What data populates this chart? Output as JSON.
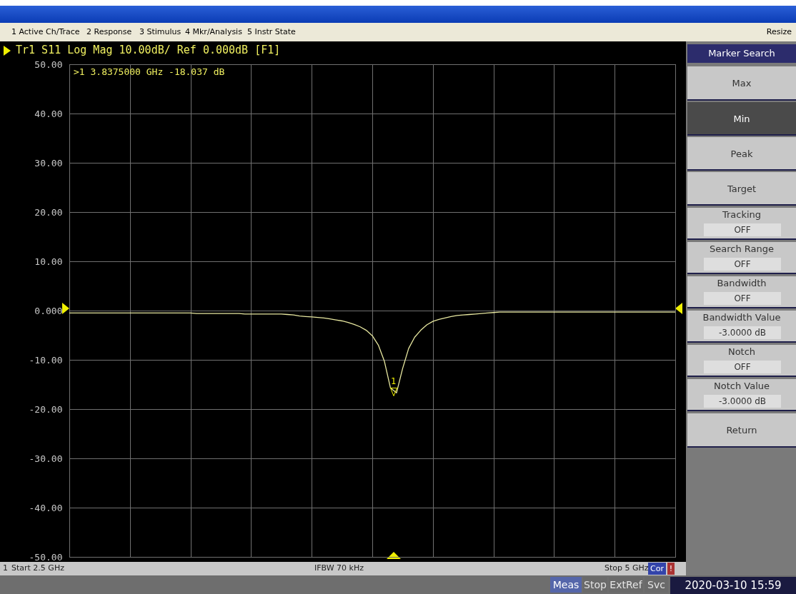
{
  "chart_data": {
    "type": "line",
    "title": "Tr1 S11 Log Mag 10.00dB/ Ref 0.000dB [F1]",
    "categories": [
      null,
      null,
      null,
      null,
      null,
      null,
      null,
      null,
      null,
      null,
      null,
      null,
      null,
      null,
      null,
      null,
      null,
      null,
      null,
      null,
      null,
      null,
      null,
      null,
      null,
      null,
      null,
      null,
      null,
      null,
      null,
      null,
      null,
      null,
      null,
      null,
      null,
      null,
      null,
      null,
      null,
      null,
      null,
      null,
      null,
      null,
      null,
      null,
      null,
      null,
      null,
      null,
      null,
      null,
      null,
      null,
      null,
      null,
      null,
      null,
      null,
      null,
      null,
      null,
      null,
      null,
      null,
      null,
      null,
      null,
      null,
      null,
      null,
      null,
      null,
      null,
      null,
      null,
      null,
      null,
      null,
      null,
      null,
      null,
      null,
      null,
      null,
      null,
      null,
      null,
      null,
      null,
      null,
      null,
      null,
      null,
      null,
      null,
      null,
      null,
      null
    ],
    "values": [
      -0.5,
      -0.5,
      -0.5,
      -0.5,
      -0.5,
      -0.5,
      -0.5,
      -0.5,
      -0.5,
      -0.5,
      -0.5,
      -0.5,
      -0.5,
      -0.5,
      -0.5,
      -0.5,
      -0.5,
      -0.5,
      -0.5,
      -0.5,
      -0.5,
      -0.6,
      -0.6,
      -0.6,
      -0.6,
      -0.6,
      -0.6,
      -0.6,
      -0.6,
      -0.7,
      -0.7,
      -0.7,
      -0.7,
      -0.7,
      -0.7,
      -0.7,
      -0.8,
      -0.9,
      -1.1,
      -1.2,
      -1.3,
      -1.4,
      -1.5,
      -1.7,
      -1.9,
      -2.1,
      -2.4,
      -2.8,
      -3.3,
      -4.0,
      -5.1,
      -7.0,
      -10.3,
      -15.7,
      -16.7,
      -11.8,
      -7.7,
      -5.4,
      -4.0,
      -2.9,
      -2.2,
      -1.8,
      -1.5,
      -1.2,
      -1.0,
      -0.9,
      -0.8,
      -0.7,
      -0.6,
      -0.5,
      -0.4,
      -0.3,
      -0.3,
      -0.3,
      -0.3,
      -0.3,
      -0.3,
      -0.3,
      -0.3,
      -0.3,
      -0.3,
      -0.3,
      -0.3,
      -0.3,
      -0.3,
      -0.3,
      -0.3,
      -0.3,
      -0.3,
      -0.3,
      -0.3,
      -0.3,
      -0.3,
      -0.3,
      -0.3,
      -0.3,
      -0.3,
      -0.3,
      -0.3,
      -0.3,
      -0.3
    ],
    "color": "#e8e8a0",
    "ylim": [
      -50,
      50
    ],
    "yticks": [
      {
        "value": 50,
        "label": "50.00"
      },
      {
        "value": 40,
        "label": "40.00"
      },
      {
        "value": 30,
        "label": "30.00"
      },
      {
        "value": 20,
        "label": "20.00"
      },
      {
        "value": 10,
        "label": "10.00"
      },
      {
        "value": 0,
        "label": "0.000"
      },
      {
        "value": -10,
        "label": "-10.00"
      },
      {
        "value": -20,
        "label": "-20.00"
      },
      {
        "value": -30,
        "label": "-30.00"
      },
      {
        "value": -40,
        "label": "-40.00"
      },
      {
        "value": -50,
        "label": "-50.00"
      }
    ],
    "grid": true,
    "tick_labels": "y",
    "annotations": [
      ">1  3.8375000 GHz -18.037 dB",
      "1",
      "1 Active Ch/Trace",
      "2 Response",
      "3 Stimulus",
      "4 Mkr/Analysis",
      "5 Instr State",
      "Resize",
      "Marker Search",
      "Max",
      "Min",
      "Peak",
      "Target",
      "Tracking",
      "OFF",
      "Search Range",
      "OFF",
      "Bandwidth",
      "OFF",
      "Bandwidth Value",
      "-3.0000 dB",
      "Notch",
      "OFF",
      "Notch Value",
      "-3.0000 dB",
      "Return",
      "1",
      "Start 2.5 GHz",
      "IFBW 70 kHz",
      "Stop 5 GHz",
      "Cor",
      "!",
      "Meas",
      "Stop",
      "ExtRef",
      "Svc",
      "2020-03-10 15:59"
    ]
  }
}
